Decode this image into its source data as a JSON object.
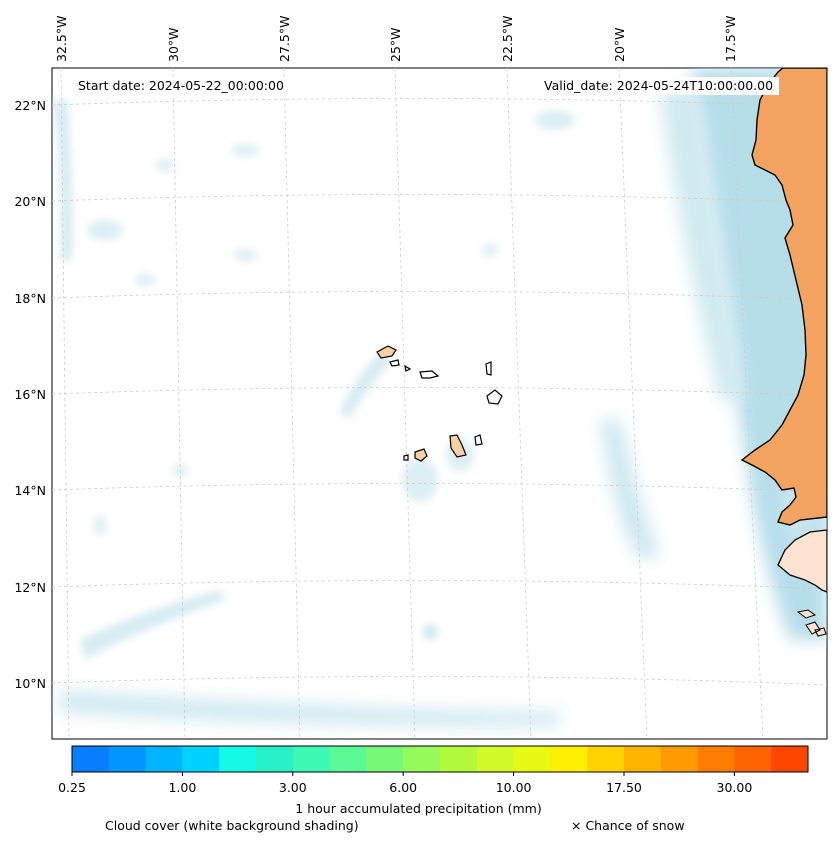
{
  "map": {
    "start_date": "Start date: 2024-05-22_00:00:00",
    "valid_date": "Valid_date: 2024-05-24T10:00:00.00",
    "lon_labels": [
      "32.5°W",
      "30°W",
      "27.5°W",
      "25°W",
      "22.5°W",
      "20°W",
      "17.5°W"
    ],
    "lat_labels": [
      "22°N",
      "20°N",
      "18°N",
      "16°N",
      "14°N",
      "12°N",
      "10°N"
    ],
    "colors": {
      "land": "#f4a460",
      "island": "#f9cfa8",
      "cloud": "#a9d8e6",
      "grid": "#cccccc"
    }
  },
  "colorbar": {
    "title": "1 hour accumulated precipitation (mm)",
    "tick_labels": [
      "0.25",
      "1.00",
      "3.00",
      "6.00",
      "10.00",
      "17.50",
      "30.00"
    ],
    "colors": [
      "#0a7dff",
      "#0096ff",
      "#00b4ff",
      "#00d2ff",
      "#14fae6",
      "#28f0c8",
      "#3cfab4",
      "#5afa96",
      "#78fa78",
      "#96fa5a",
      "#b4fa3c",
      "#d2fa28",
      "#e6fa14",
      "#fff000",
      "#ffd200",
      "#ffb400",
      "#ff9b00",
      "#ff7d00",
      "#ff6400",
      "#ff4600"
    ]
  },
  "legend": {
    "cloud_cover": "Cloud cover (white background shading)",
    "snow": "× Chance of snow"
  }
}
